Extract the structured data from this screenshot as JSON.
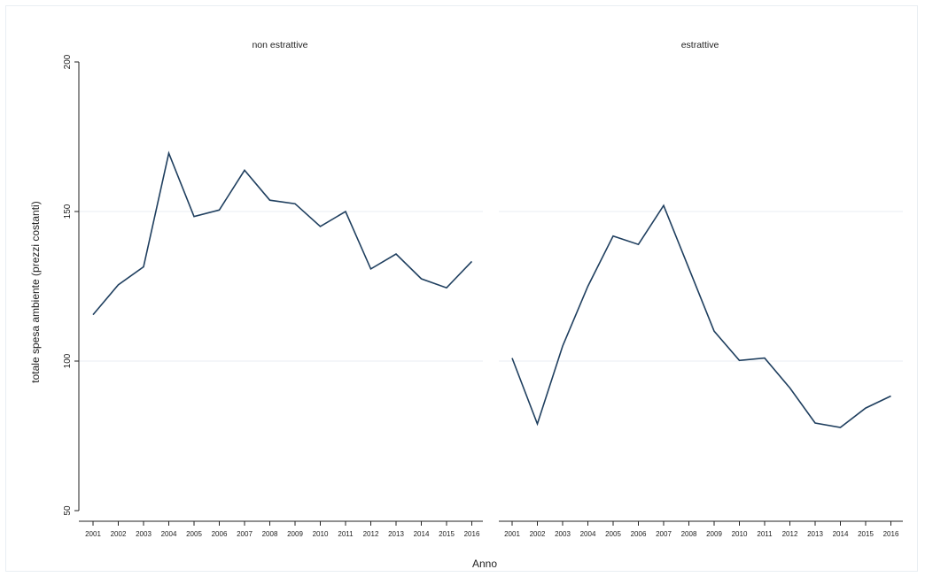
{
  "chart_data": {
    "type": "line",
    "xlabel": "Anno",
    "ylabel": "totale spesa ambiente (prezzi costanti)",
    "ylim": [
      50,
      200
    ],
    "yticks": [
      50,
      100,
      150,
      200
    ],
    "grid": true,
    "line_color": "#1f3f5f",
    "grid_color": "#e8eef3",
    "panels": [
      {
        "title": "non estrattive",
        "x": [
          2001,
          2002,
          2003,
          2004,
          2005,
          2006,
          2007,
          2008,
          2009,
          2010,
          2011,
          2012,
          2013,
          2014,
          2015,
          2016
        ],
        "y": [
          115.5,
          125.5,
          131.5,
          169.5,
          148.3,
          150.5,
          163.8,
          153.8,
          152.6,
          145.0,
          150.0,
          130.8,
          135.8,
          127.5,
          124.5,
          133.3
        ]
      },
      {
        "title": "estrattive",
        "x": [
          2001,
          2002,
          2003,
          2004,
          2005,
          2006,
          2007,
          2008,
          2009,
          2010,
          2011,
          2012,
          2013,
          2014,
          2015,
          2016
        ],
        "y": [
          101.0,
          79.0,
          105.0,
          125.0,
          141.8,
          139.0,
          152.0,
          131.0,
          110.0,
          100.2,
          101.0,
          91.0,
          79.3,
          77.8,
          84.3,
          88.3
        ]
      }
    ]
  }
}
